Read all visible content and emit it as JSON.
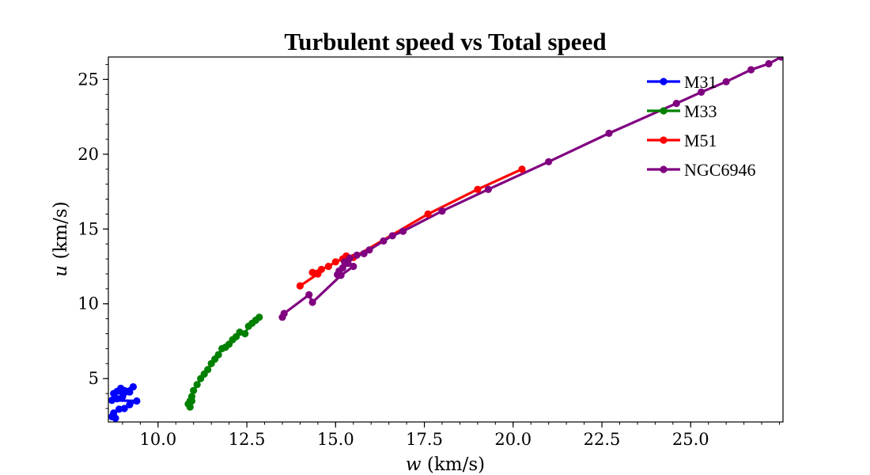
{
  "chart_data": {
    "type": "line",
    "title": "Turbulent speed vs Total speed",
    "xlabel_var": "w",
    "xlabel_unit": " (km/s)",
    "ylabel_var": "u",
    "ylabel_unit": " (km/s)",
    "xlim": [
      8.6,
      27.6
    ],
    "ylim": [
      2.1,
      26.5
    ],
    "xticks": [
      10.0,
      12.5,
      15.0,
      17.5,
      20.0,
      22.5,
      25.0
    ],
    "xtick_labels": [
      "10.0",
      "12.5",
      "15.0",
      "17.5",
      "20.0",
      "22.5",
      "25.0"
    ],
    "yticks": [
      5,
      10,
      15,
      20,
      25
    ],
    "ytick_labels": [
      "5",
      "10",
      "15",
      "20",
      "25"
    ],
    "legend_position": "top-right",
    "series": [
      {
        "name": "M31",
        "color": "#0000ff",
        "x": [
          9.3,
          9.05,
          8.95,
          8.85,
          8.75,
          9.2,
          9.0,
          8.85,
          8.7,
          9.4,
          9.2,
          9.05,
          8.9,
          8.75,
          8.7,
          8.8
        ],
        "y": [
          4.45,
          4.2,
          4.35,
          4.15,
          4.0,
          4.1,
          3.8,
          3.65,
          3.55,
          3.5,
          3.25,
          3.0,
          2.95,
          2.7,
          2.45,
          2.35
        ]
      },
      {
        "name": "M33",
        "color": "#008000",
        "x": [
          12.85,
          12.75,
          12.65,
          12.55,
          12.45,
          12.3,
          12.2,
          12.1,
          12.0,
          11.9,
          11.8,
          11.7,
          11.6,
          11.5,
          11.4,
          11.3,
          11.2,
          11.1,
          11.0,
          10.95,
          10.9,
          10.85,
          10.9,
          10.95
        ],
        "y": [
          9.1,
          8.9,
          8.7,
          8.5,
          8.0,
          8.1,
          7.8,
          7.6,
          7.3,
          7.1,
          7.0,
          6.6,
          6.3,
          6.0,
          5.6,
          5.3,
          5.0,
          4.6,
          4.2,
          3.8,
          3.5,
          3.3,
          3.1,
          3.5
        ]
      },
      {
        "name": "M51",
        "color": "#ff0000",
        "x": [
          20.25,
          19.0,
          17.6,
          15.5,
          15.3,
          15.2,
          15.0,
          14.8,
          14.6,
          14.35,
          14.5,
          14.0
        ],
        "y": [
          19.0,
          17.65,
          16.0,
          13.1,
          13.2,
          13.0,
          12.8,
          12.5,
          12.3,
          12.1,
          12.0,
          11.2
        ]
      },
      {
        "name": "NGC6946",
        "color": "#800080",
        "x": [
          27.55,
          27.2,
          26.7,
          26.0,
          25.3,
          24.6,
          22.7,
          21.0,
          19.3,
          18.0,
          16.9,
          16.6,
          16.35,
          15.95,
          15.8,
          15.6,
          15.4,
          15.25,
          15.1,
          15.05,
          15.2,
          15.35,
          15.5,
          15.15,
          14.35,
          14.25,
          13.55,
          13.5
        ],
        "y": [
          26.5,
          26.05,
          25.65,
          24.85,
          24.15,
          23.4,
          21.4,
          19.5,
          17.65,
          16.2,
          14.85,
          14.55,
          14.2,
          13.6,
          13.35,
          13.25,
          13.05,
          12.8,
          12.2,
          11.95,
          12.4,
          12.7,
          12.5,
          11.9,
          10.1,
          10.6,
          9.35,
          9.1
        ]
      }
    ]
  }
}
